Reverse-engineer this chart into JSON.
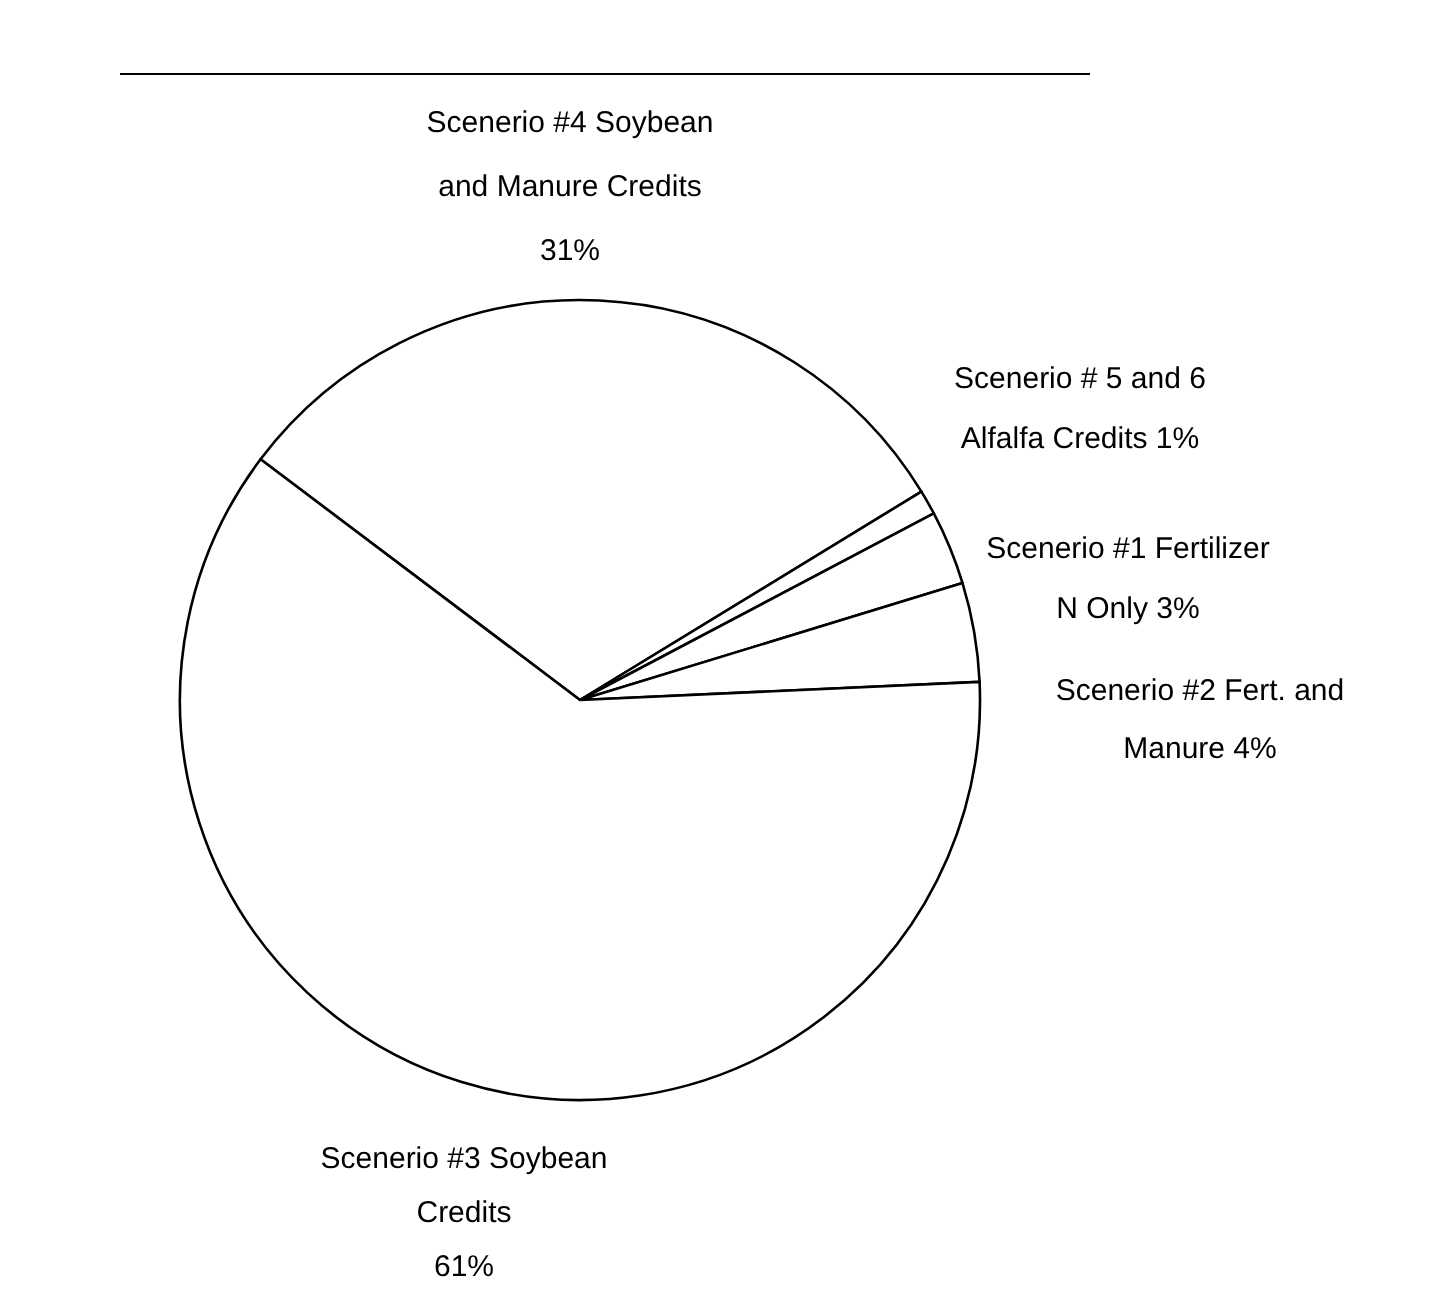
{
  "chart_data": {
    "type": "pie",
    "categories": [
      "Scenerio #4 Soybean and Manure Credits",
      "Scenerio # 5 and 6 Alfalfa Credits",
      "Scenerio #1 Fertilizer N Only",
      "Scenerio #2 Fert. and Manure",
      "Scenerio #3 Soybean Credits"
    ],
    "values": [
      31,
      1,
      3,
      4,
      61
    ],
    "value_labels": [
      "31%",
      "1%",
      "3%",
      "4%",
      "61%"
    ],
    "colors": [
      "#ffffff",
      "#ffffff",
      "#ffffff",
      "#ffffff",
      "#ffffff"
    ]
  }
}
